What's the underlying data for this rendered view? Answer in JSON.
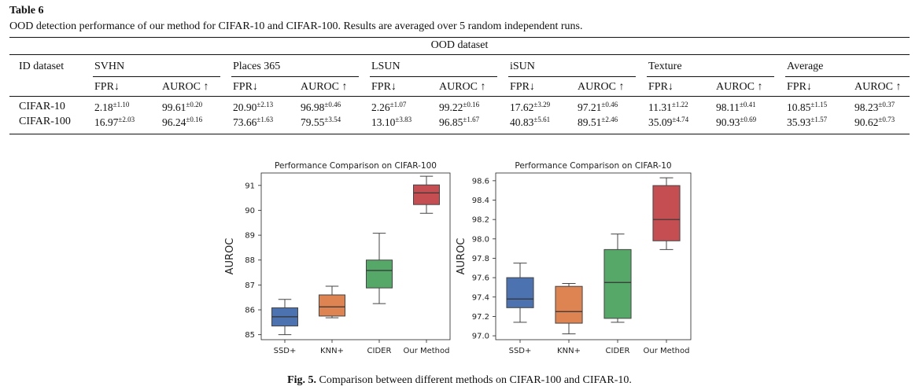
{
  "table": {
    "label": "Table 6",
    "caption": "OOD detection performance of our method for CIFAR-10 and CIFAR-100. Results are averaged over 5 random independent runs.",
    "group_header": "OOD dataset",
    "id_header": "ID dataset",
    "datasets": [
      "SVHN",
      "Places 365",
      "LSUN",
      "iSUN",
      "Texture",
      "Average"
    ],
    "metrics": [
      "FPR↓",
      "AUROC ↑"
    ],
    "rows": [
      {
        "name": "CIFAR-10",
        "values": [
          [
            "2.18",
            "±1.10"
          ],
          [
            "99.61",
            "±0.20"
          ],
          [
            "20.90",
            "±2.13"
          ],
          [
            "96.98",
            "±0.46"
          ],
          [
            "2.26",
            "±1.07"
          ],
          [
            "99.22",
            "±0.16"
          ],
          [
            "17.62",
            "±3.29"
          ],
          [
            "97.21",
            "±0.46"
          ],
          [
            "11.31",
            "±1.22"
          ],
          [
            "98.11",
            "±0.41"
          ],
          [
            "10.85",
            "±1.15"
          ],
          [
            "98.23",
            "±0.37"
          ]
        ]
      },
      {
        "name": "CIFAR-100",
        "values": [
          [
            "16.97",
            "±2.03"
          ],
          [
            "96.24",
            "±0.16"
          ],
          [
            "73.66",
            "±1.63"
          ],
          [
            "79.55",
            "±3.54"
          ],
          [
            "13.10",
            "±3.83"
          ],
          [
            "96.85",
            "±1.67"
          ],
          [
            "40.83",
            "±5.61"
          ],
          [
            "89.51",
            "±2.46"
          ],
          [
            "35.09",
            "±4.74"
          ],
          [
            "90.93",
            "±0.69"
          ],
          [
            "35.93",
            "±1.57"
          ],
          [
            "90.62",
            "±0.73"
          ]
        ]
      }
    ]
  },
  "figure": {
    "caption_label": "Fig. 5.",
    "caption_text": "Comparison between different methods on CIFAR-100 and CIFAR-10."
  },
  "chart_data": [
    {
      "type": "box",
      "title": "Performance Comparison on CIFAR-100",
      "ylabel": "AUROC",
      "xlabel": "",
      "ylim": [
        84.8,
        91.5
      ],
      "yticks": [
        85,
        86,
        87,
        88,
        89,
        90,
        91
      ],
      "categories": [
        "SSD+",
        "KNN+",
        "CIDER",
        "Our Method"
      ],
      "colors": [
        "#4c72b0",
        "#dd8452",
        "#55a868",
        "#c44e52"
      ],
      "boxes": [
        {
          "min": 85.0,
          "q1": 85.35,
          "median": 85.72,
          "q3": 86.08,
          "max": 86.42
        },
        {
          "min": 85.68,
          "q1": 85.75,
          "median": 86.12,
          "q3": 86.6,
          "max": 86.95
        },
        {
          "min": 86.25,
          "q1": 86.88,
          "median": 87.58,
          "q3": 88.0,
          "max": 89.08
        },
        {
          "min": 89.88,
          "q1": 90.23,
          "median": 90.7,
          "q3": 91.02,
          "max": 91.37
        }
      ],
      "grid": false
    },
    {
      "type": "box",
      "title": "Performance Comparison on CIFAR-10",
      "ylabel": "AUROC",
      "xlabel": "",
      "ylim": [
        96.96,
        98.68
      ],
      "yticks": [
        "97.0",
        "97.2",
        "97.4",
        "97.6",
        "97.8",
        "98.0",
        "98.2",
        "98.4",
        "98.6"
      ],
      "categories": [
        "SSD+",
        "KNN+",
        "CIDER",
        "Our Method"
      ],
      "colors": [
        "#4c72b0",
        "#dd8452",
        "#55a868",
        "#c44e52"
      ],
      "boxes": [
        {
          "min": 97.14,
          "q1": 97.29,
          "median": 97.38,
          "q3": 97.6,
          "max": 97.75
        },
        {
          "min": 97.02,
          "q1": 97.13,
          "median": 97.25,
          "q3": 97.51,
          "max": 97.54
        },
        {
          "min": 97.14,
          "q1": 97.18,
          "median": 97.55,
          "q3": 97.89,
          "max": 98.05
        },
        {
          "min": 97.89,
          "q1": 97.98,
          "median": 98.2,
          "q3": 98.55,
          "max": 98.63
        }
      ],
      "grid": false
    }
  ]
}
